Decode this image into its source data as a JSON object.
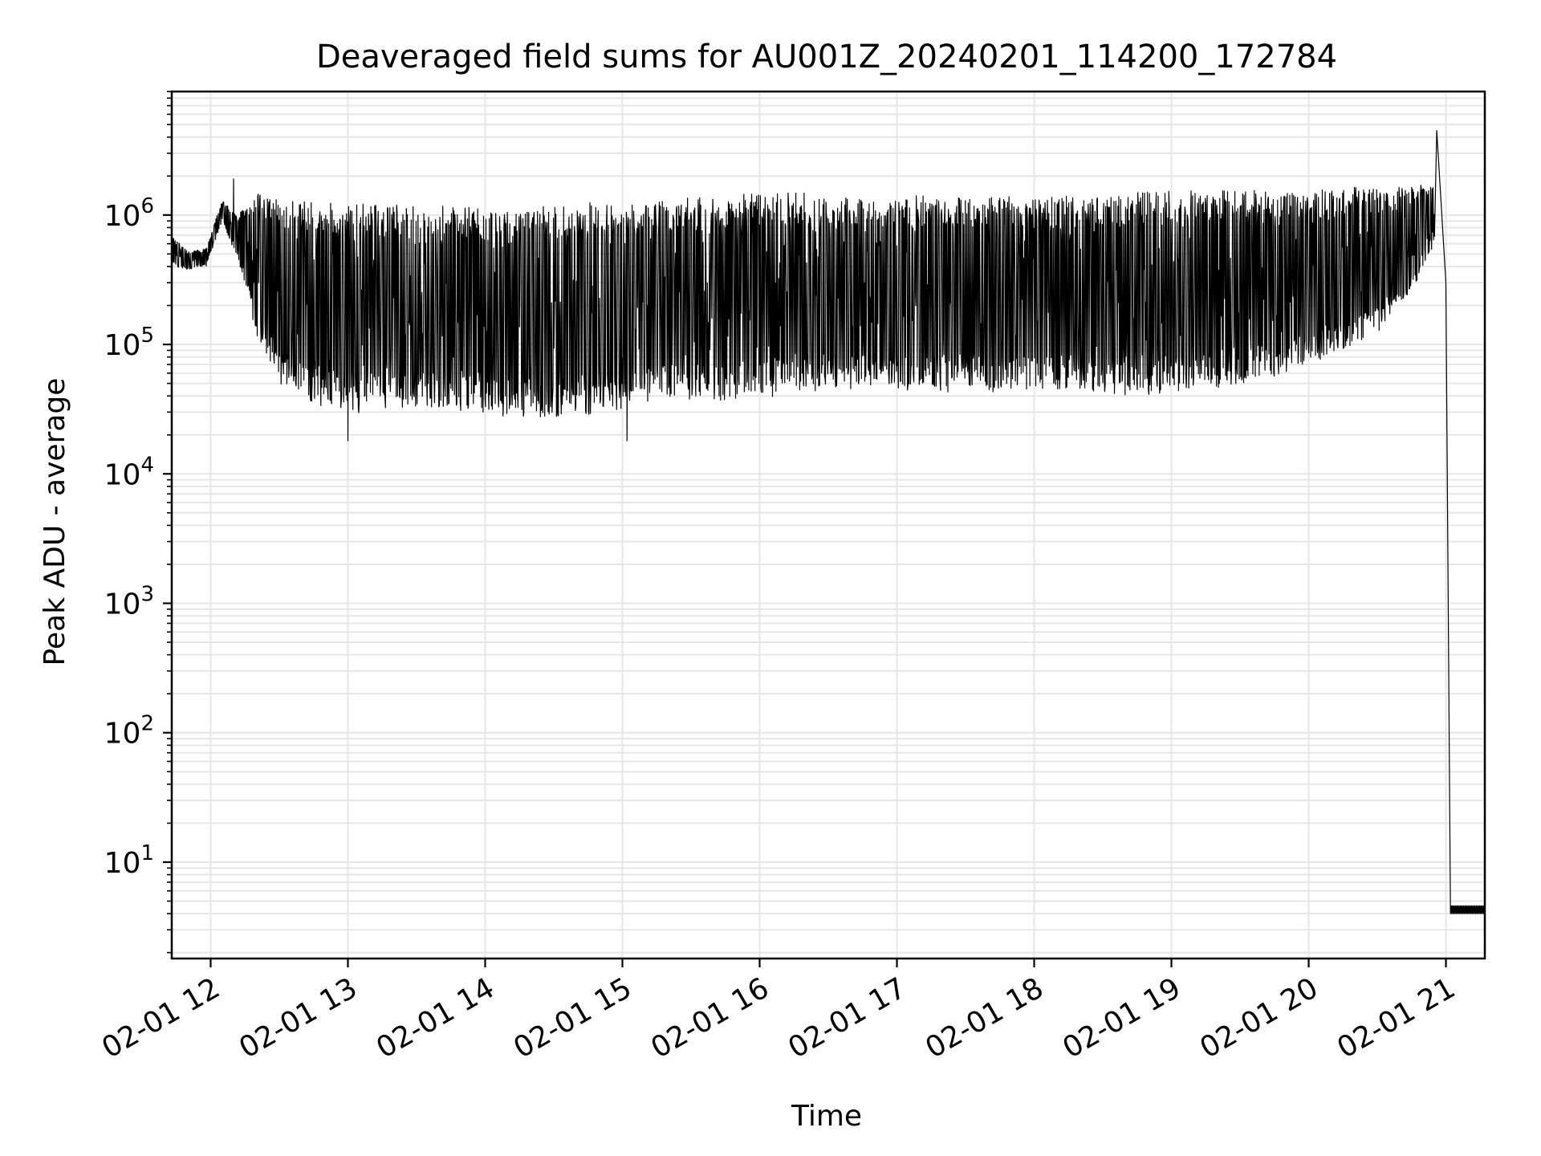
{
  "chart_data": {
    "type": "line",
    "title": "Deaveraged field sums for AU001Z_20240201_114200_172784",
    "xlabel": "Time",
    "ylabel": "Peak ADU - average",
    "yscale": "log",
    "ylim": [
      1.8,
      9000000
    ],
    "xlim": [
      "2024-02-01 11:43",
      "2024-02-01 21:17"
    ],
    "x_ticks": [
      {
        "value": "2024-02-01 12:00",
        "label": "02-01 12"
      },
      {
        "value": "2024-02-01 13:00",
        "label": "02-01 13"
      },
      {
        "value": "2024-02-01 14:00",
        "label": "02-01 14"
      },
      {
        "value": "2024-02-01 15:00",
        "label": "02-01 15"
      },
      {
        "value": "2024-02-01 16:00",
        "label": "02-01 16"
      },
      {
        "value": "2024-02-01 17:00",
        "label": "02-01 17"
      },
      {
        "value": "2024-02-01 18:00",
        "label": "02-01 18"
      },
      {
        "value": "2024-02-01 19:00",
        "label": "02-01 19"
      },
      {
        "value": "2024-02-01 20:00",
        "label": "02-01 20"
      },
      {
        "value": "2024-02-01 21:00",
        "label": "02-01 21"
      }
    ],
    "y_ticks": [
      {
        "value": 10,
        "base": "10",
        "exp": "1"
      },
      {
        "value": 100,
        "base": "10",
        "exp": "2"
      },
      {
        "value": 1000,
        "base": "10",
        "exp": "3"
      },
      {
        "value": 10000,
        "base": "10",
        "exp": "4"
      },
      {
        "value": 100000,
        "base": "10",
        "exp": "5"
      },
      {
        "value": 1000000,
        "base": "10",
        "exp": "6"
      }
    ],
    "grid": true,
    "line_color": "#000000",
    "grid_color": "#e6e6e6",
    "series": [
      {
        "envelope": {
          "time": [
            "2024-02-01 11:43",
            "2024-02-01 11:50",
            "2024-02-01 11:58",
            "2024-02-01 12:05",
            "2024-02-01 12:12",
            "2024-02-01 12:20",
            "2024-02-01 12:30",
            "2024-02-01 12:45",
            "2024-02-01 13:00",
            "2024-02-01 13:15",
            "2024-02-01 13:30",
            "2024-02-01 13:45",
            "2024-02-01 14:00",
            "2024-02-01 14:15",
            "2024-02-01 14:30",
            "2024-02-01 14:45",
            "2024-02-01 15:00",
            "2024-02-01 15:15",
            "2024-02-01 15:30",
            "2024-02-01 15:45",
            "2024-02-01 16:00",
            "2024-02-01 16:15",
            "2024-02-01 16:30",
            "2024-02-01 16:45",
            "2024-02-01 17:00",
            "2024-02-01 17:15",
            "2024-02-01 17:30",
            "2024-02-01 17:45",
            "2024-02-01 18:00",
            "2024-02-01 18:15",
            "2024-02-01 18:30",
            "2024-02-01 18:45",
            "2024-02-01 19:00",
            "2024-02-01 19:15",
            "2024-02-01 19:30",
            "2024-02-01 19:45",
            "2024-02-01 20:00",
            "2024-02-01 20:15",
            "2024-02-01 20:30",
            "2024-02-01 20:45",
            "2024-02-01 20:55"
          ],
          "low": [
            400000,
            380000,
            400000,
            900000,
            450000,
            120000,
            50000,
            35000,
            28000,
            30000,
            32000,
            32000,
            28000,
            28000,
            27000,
            28000,
            32000,
            38000,
            37000,
            36000,
            38000,
            42000,
            45000,
            45000,
            45000,
            42000,
            42000,
            43000,
            45000,
            44000,
            42000,
            40000,
            42000,
            45000,
            48000,
            55000,
            70000,
            90000,
            120000,
            250000,
            600000
          ],
          "high": [
            700000,
            520000,
            550000,
            1300000,
            1000000,
            1500000,
            1300000,
            1300000,
            1250000,
            1200000,
            1200000,
            1200000,
            1100000,
            1100000,
            1200000,
            1250000,
            1200000,
            1300000,
            1400000,
            1450000,
            1450000,
            1500000,
            1450000,
            1450000,
            1450000,
            1400000,
            1350000,
            1400000,
            1400000,
            1400000,
            1350000,
            1500000,
            1550000,
            1550000,
            1550000,
            1550000,
            1600000,
            1650000,
            1650000,
            1700000,
            1800000
          ]
        },
        "notable_points": [
          {
            "time": "2024-02-01 12:10",
            "value": 1900000
          },
          {
            "time": "2024-02-01 13:00",
            "value": 18000
          },
          {
            "time": "2024-02-01 15:02",
            "value": 18000
          },
          {
            "time": "2024-02-01 20:56",
            "value": 4500000
          },
          {
            "time": "2024-02-01 21:00",
            "value": 300000
          },
          {
            "time": "2024-02-01 21:02",
            "value": 4
          }
        ],
        "tail": {
          "from": "2024-02-01 21:02",
          "to": "2024-02-01 21:17",
          "low": 4,
          "high": 4.6
        }
      }
    ]
  }
}
